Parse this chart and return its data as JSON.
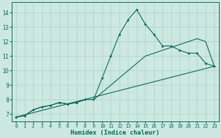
{
  "xlabel": "Humidex (Indice chaleur)",
  "bg_color": "#cce8e0",
  "grid_color": "#aacfc8",
  "line_color": "#006858",
  "spine_color": "#006858",
  "xlim": [
    -0.5,
    23.5
  ],
  "ylim": [
    6.5,
    14.7
  ],
  "xticks": [
    0,
    1,
    2,
    3,
    4,
    5,
    6,
    7,
    8,
    9,
    10,
    11,
    12,
    13,
    14,
    15,
    16,
    17,
    18,
    19,
    20,
    21,
    22,
    23
  ],
  "yticks": [
    7,
    8,
    9,
    10,
    11,
    12,
    13,
    14
  ],
  "line1_x": [
    0,
    1,
    2,
    3,
    4,
    5,
    6,
    7,
    8,
    9,
    10,
    11,
    12,
    13,
    14,
    15,
    16,
    17,
    18,
    19,
    20,
    21,
    22,
    23
  ],
  "line1_y": [
    6.8,
    6.9,
    7.3,
    7.5,
    7.6,
    7.8,
    7.7,
    7.8,
    8.0,
    8.0,
    9.5,
    11.0,
    12.5,
    13.5,
    14.2,
    13.2,
    12.5,
    11.7,
    11.7,
    11.4,
    11.2,
    11.2,
    10.5,
    10.3
  ],
  "line2_x": [
    0,
    1,
    2,
    3,
    4,
    5,
    6,
    7,
    8,
    9,
    10,
    11,
    12,
    13,
    14,
    15,
    16,
    17,
    18,
    19,
    20,
    21,
    22,
    23
  ],
  "line2_y": [
    6.8,
    6.9,
    7.3,
    7.5,
    7.6,
    7.8,
    7.7,
    7.8,
    8.0,
    8.0,
    8.5,
    9.0,
    9.5,
    10.0,
    10.5,
    11.0,
    11.2,
    11.4,
    11.6,
    11.8,
    12.0,
    12.2,
    12.0,
    10.3
  ],
  "line3_x": [
    0,
    23
  ],
  "line3_y": [
    6.8,
    10.3
  ],
  "xlabel_fontsize": 6.5,
  "tick_fontsize": 5.0
}
